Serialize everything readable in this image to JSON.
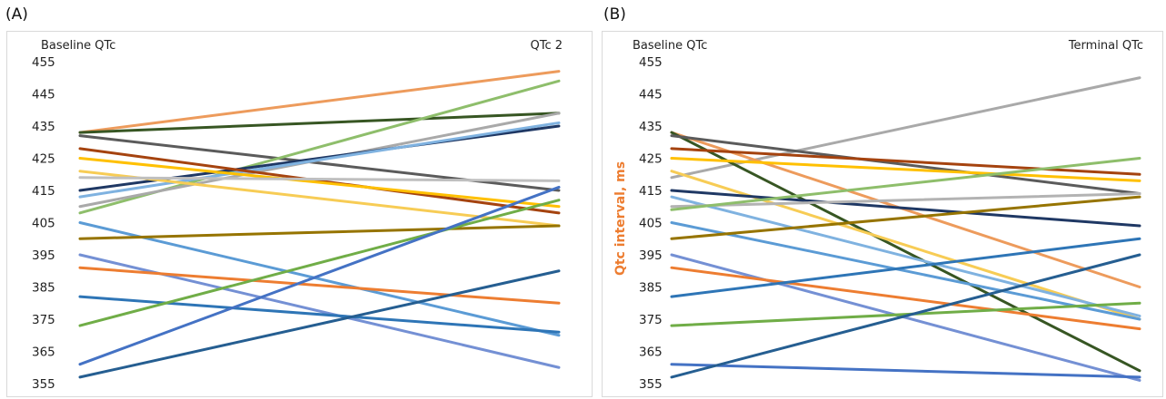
{
  "panels": [
    {
      "label": "(A)"
    },
    {
      "label": "(B)"
    }
  ],
  "chart_data": [
    {
      "type": "line",
      "panel": "(A)",
      "title": "",
      "categories": [
        "Baseline QTc",
        "QTc 2"
      ],
      "ylabel": "",
      "yticks": [
        455,
        445,
        435,
        425,
        415,
        405,
        395,
        385,
        375,
        365,
        355
      ],
      "ylim": [
        355,
        455
      ],
      "grid": false,
      "series": [
        {
          "color": "#ED9B5C",
          "values": [
            433,
            452
          ]
        },
        {
          "color": "#375623",
          "values": [
            433,
            439
          ]
        },
        {
          "color": "#5B5B5B",
          "values": [
            432,
            415
          ]
        },
        {
          "color": "#8EBE6B",
          "values": [
            408,
            449
          ]
        },
        {
          "color": "#A9A9A9",
          "values": [
            410,
            439
          ]
        },
        {
          "color": "#1F3864",
          "values": [
            415,
            435
          ]
        },
        {
          "color": "#7FB2E0",
          "values": [
            413,
            436
          ]
        },
        {
          "color": "#A5430F",
          "values": [
            428,
            408
          ]
        },
        {
          "color": "#FFC000",
          "values": [
            425,
            410
          ]
        },
        {
          "color": "#F7CC55",
          "values": [
            421,
            404
          ]
        },
        {
          "color": "#BFBFBF",
          "values": [
            419,
            418
          ]
        },
        {
          "color": "#5B9BD5",
          "values": [
            405,
            370
          ]
        },
        {
          "color": "#967400",
          "values": [
            400,
            404
          ]
        },
        {
          "color": "#7490D4",
          "values": [
            395,
            360
          ]
        },
        {
          "color": "#ED7D31",
          "values": [
            391,
            380
          ]
        },
        {
          "color": "#2E75B6",
          "values": [
            382,
            371
          ]
        },
        {
          "color": "#70AD47",
          "values": [
            373,
            412
          ]
        },
        {
          "color": "#4472C4",
          "values": [
            361,
            416
          ]
        },
        {
          "color": "#255E91",
          "values": [
            357,
            390
          ]
        }
      ]
    },
    {
      "type": "line",
      "panel": "(B)",
      "title": "",
      "categories": [
        "Baseline QTc",
        "Terminal QTc"
      ],
      "ylabel": "Qtc interval, ms",
      "yticks": [
        455,
        445,
        435,
        425,
        415,
        405,
        395,
        385,
        375,
        365,
        355
      ],
      "ylim": [
        355,
        455
      ],
      "grid": false,
      "series": [
        {
          "color": "#A9A9A9",
          "values": [
            419,
            450
          ]
        },
        {
          "color": "#ED9B5C",
          "values": [
            433,
            385
          ]
        },
        {
          "color": "#375623",
          "values": [
            433,
            359
          ]
        },
        {
          "color": "#5B5B5B",
          "values": [
            432,
            414
          ]
        },
        {
          "color": "#A5430F",
          "values": [
            428,
            420
          ]
        },
        {
          "color": "#FFC000",
          "values": [
            425,
            418
          ]
        },
        {
          "color": "#F7CC55",
          "values": [
            421,
            375
          ]
        },
        {
          "color": "#1F3864",
          "values": [
            415,
            404
          ]
        },
        {
          "color": "#7FB2E0",
          "values": [
            413,
            376
          ]
        },
        {
          "color": "#B3B3B3",
          "values": [
            410,
            414
          ]
        },
        {
          "color": "#8EBE6B",
          "values": [
            409,
            425
          ]
        },
        {
          "color": "#5B9BD5",
          "values": [
            405,
            375
          ]
        },
        {
          "color": "#967400",
          "values": [
            400,
            413
          ]
        },
        {
          "color": "#7490D4",
          "values": [
            395,
            356
          ]
        },
        {
          "color": "#ED7D31",
          "values": [
            391,
            372
          ]
        },
        {
          "color": "#2E75B6",
          "values": [
            382,
            400
          ]
        },
        {
          "color": "#70AD47",
          "values": [
            373,
            380
          ]
        },
        {
          "color": "#4472C4",
          "values": [
            361,
            357
          ]
        },
        {
          "color": "#255E91",
          "values": [
            357,
            395
          ]
        }
      ]
    }
  ]
}
